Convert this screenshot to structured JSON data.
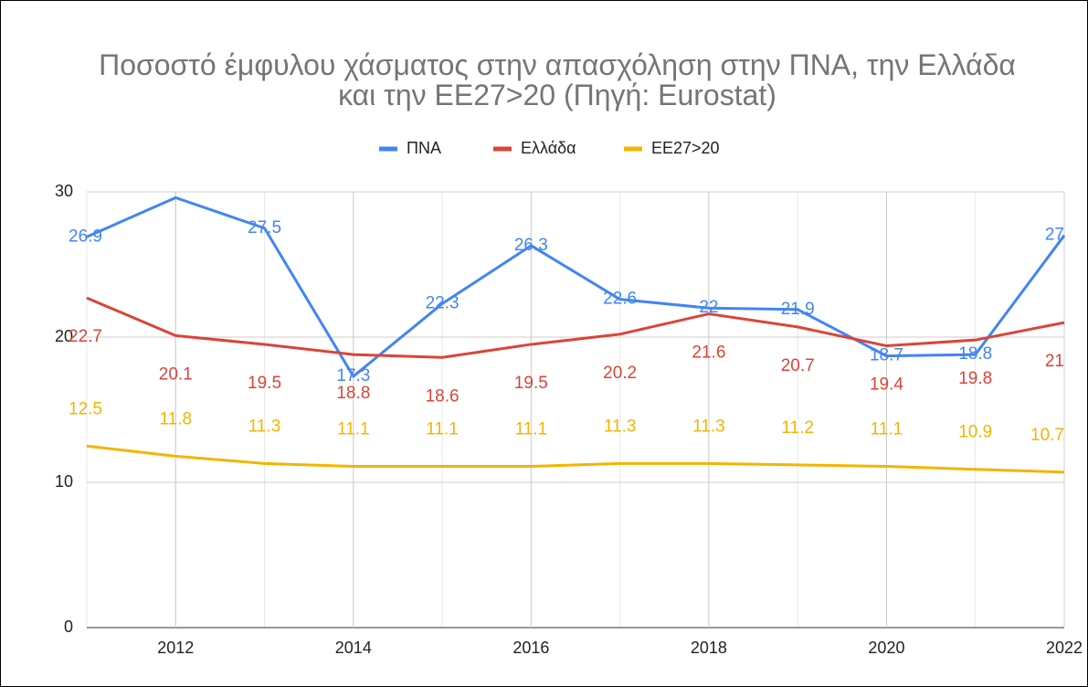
{
  "chart_data": {
    "type": "line",
    "title": "Ποσοστό έμφυλου χάσματος στην απασχόληση στην ΠΝΑ, την Ελλάδα και την ΕΕ27>20 (Πηγή: Eurostat)",
    "x": [
      2011,
      2012,
      2013,
      2014,
      2015,
      2016,
      2017,
      2018,
      2019,
      2020,
      2021,
      2022
    ],
    "series": [
      {
        "name": "ΠΝΑ",
        "color": "#4285f4",
        "values": [
          26.9,
          29.6,
          27.5,
          17.3,
          22.3,
          26.3,
          22.6,
          22,
          21.9,
          18.7,
          18.8,
          27
        ],
        "value_labels": [
          "26.9",
          null,
          "27.5",
          "17.3",
          "22.3",
          "26.3",
          "22.6",
          "22",
          "21.9",
          "18.7",
          "18.8",
          "27"
        ]
      },
      {
        "name": "Ελλάδα",
        "color": "#db4437",
        "values": [
          22.7,
          20.1,
          19.5,
          18.8,
          18.6,
          19.5,
          20.2,
          21.6,
          20.7,
          19.4,
          19.8,
          21
        ]
      },
      {
        "name": "ΕΕ27>20",
        "color": "#f4b400",
        "values": [
          12.5,
          11.8,
          11.3,
          11.1,
          11.1,
          11.1,
          11.3,
          11.3,
          11.2,
          11.1,
          10.9,
          10.7
        ]
      }
    ],
    "xlim": [
      2011,
      2022
    ],
    "xticks": [
      2012,
      2014,
      2016,
      2018,
      2020,
      2022
    ],
    "ylim": [
      0,
      30
    ],
    "yticks": [
      0,
      10,
      20,
      30
    ],
    "grid": true,
    "legend": "top"
  }
}
